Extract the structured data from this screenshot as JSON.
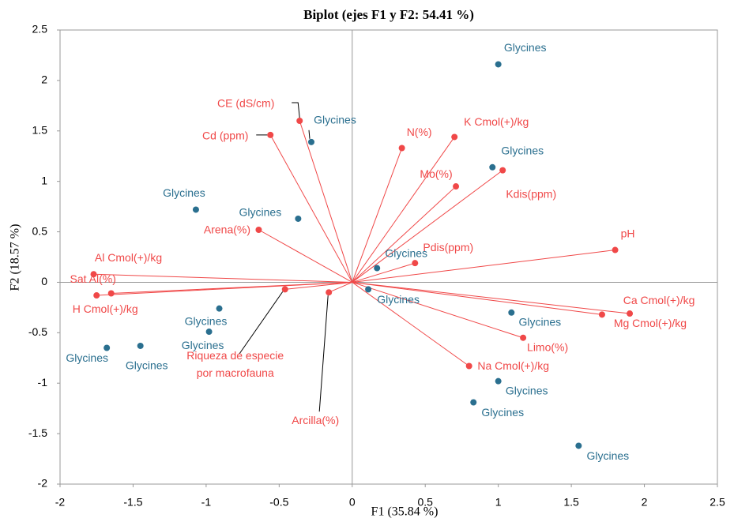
{
  "chart_data": {
    "type": "biplot",
    "title": "Biplot (ejes F1 y F2: 54.41 %)",
    "xlabel": "F1 (35.84 %)",
    "ylabel": "F2 (18.57 %)",
    "xlim": [
      -2,
      2.5
    ],
    "ylim": [
      -2,
      2.5
    ],
    "xticks": [
      -2,
      -1.5,
      -1,
      -0.5,
      0,
      0.5,
      1,
      1.5,
      2,
      2.5
    ],
    "yticks": [
      -2,
      -1.5,
      -1,
      -0.5,
      0,
      0.5,
      1,
      1.5,
      2,
      2.5
    ],
    "variables": {
      "color": "#f04848",
      "names": [
        "CE (dS/cm)",
        "Cd (ppm)",
        "N(%)",
        "K Cmol(+)/kg",
        "Mo(%)",
        "Kdis(ppm)",
        "pH",
        "Pdis(ppm)",
        "Arena(%)",
        "Al Cmol(+)/kg",
        "Sat Al(%)",
        "H Cmol(+)/kg",
        "Riqueza de especie por macrofauna",
        "Arcilla(%)",
        "Ca Cmol(+)/kg",
        "Mg Cmol(+)/kg",
        "Limo(%)",
        "Na Cmol(+)/kg"
      ],
      "x": [
        -0.36,
        -0.56,
        0.34,
        0.7,
        0.71,
        1.03,
        1.8,
        0.43,
        -0.64,
        -1.77,
        -1.65,
        -1.75,
        -0.46,
        -0.16,
        1.9,
        1.71,
        1.17,
        0.8
      ],
      "y": [
        1.6,
        1.46,
        1.33,
        1.44,
        0.95,
        1.11,
        0.32,
        0.19,
        0.52,
        0.08,
        -0.11,
        -0.13,
        -0.07,
        -0.1,
        -0.31,
        -0.32,
        -0.55,
        -0.83
      ]
    },
    "observations": {
      "color": "#2a6f8f",
      "names": [
        "Glycines",
        "Glycines",
        "Glycines",
        "Glycines",
        "Glycines",
        "Glycines",
        "Glycines",
        "Glycines",
        "Glycines",
        "Glycines",
        "Glycines",
        "Glycines",
        "Glycines",
        "Glycines",
        "Glycines"
      ],
      "x": [
        1.0,
        -0.28,
        0.96,
        -1.07,
        -0.37,
        0.17,
        0.11,
        -0.91,
        -0.98,
        -1.68,
        -1.45,
        1.09,
        1.0,
        0.83,
        1.55
      ],
      "y": [
        2.16,
        1.39,
        1.14,
        0.72,
        0.63,
        0.14,
        -0.07,
        -0.26,
        -0.49,
        -0.65,
        -0.63,
        -0.3,
        -0.98,
        -1.19,
        -1.62
      ]
    }
  }
}
